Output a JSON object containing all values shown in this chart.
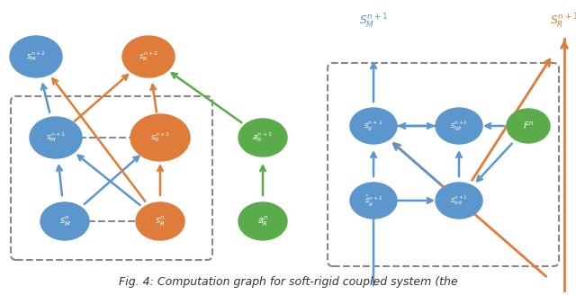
{
  "fig_width": 6.4,
  "fig_height": 3.28,
  "dpi": 100,
  "bg_color": "#ffffff",
  "blue": "#5b96cc",
  "orange": "#e07c39",
  "green": "#5aab4a",
  "gray": "#888888",
  "caption_text": "Fig. 4: Computation graph for soft-rigid coupled system (the",
  "caption_fontsize": 9.0
}
